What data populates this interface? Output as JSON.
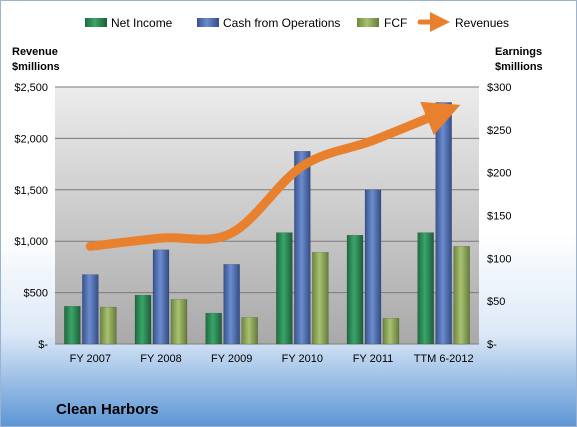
{
  "chart_data": {
    "type": "bar",
    "title": "Clean Harbors",
    "categories": [
      "FY 2007",
      "FY 2008",
      "FY 2009",
      "FY 2010",
      "FY 2011",
      "TTM 6-2012"
    ],
    "left_axis": {
      "label_line1": "Revenue",
      "label_line2": "$millions",
      "ylim": [
        0,
        2500
      ],
      "ticks": [
        0,
        500,
        1000,
        1500,
        2000,
        2500
      ],
      "tick_labels": [
        "$-",
        "$500",
        "$1,000",
        "$1,500",
        "$2,000",
        "$2,500"
      ]
    },
    "right_axis": {
      "label_line1": "Earnings",
      "label_line2": "$millions",
      "ylim": [
        0,
        300
      ],
      "ticks": [
        0,
        50,
        100,
        150,
        200,
        250,
        300
      ],
      "tick_labels": [
        "$-",
        "$50",
        "$100",
        "$150",
        "$200",
        "$250",
        "$300"
      ]
    },
    "series": [
      {
        "name": "Net Income",
        "type": "bar",
        "axis": "right",
        "color": "#2e8b57",
        "values": [
          44,
          57,
          36,
          130,
          127,
          130
        ]
      },
      {
        "name": "Cash from Operations",
        "type": "bar",
        "axis": "right",
        "color": "#4f6fb3",
        "values": [
          81,
          110,
          93,
          225,
          180,
          282
        ]
      },
      {
        "name": "FCF",
        "type": "bar",
        "axis": "right",
        "color": "#8faa55",
        "values": [
          43,
          52,
          31,
          107,
          30,
          114
        ]
      },
      {
        "name": "Revenues",
        "type": "line",
        "axis": "left",
        "color": "#e8802e",
        "values": [
          950,
          1030,
          1080,
          1730,
          1980,
          2260
        ]
      }
    ],
    "grid": true,
    "legend_position": "top"
  }
}
